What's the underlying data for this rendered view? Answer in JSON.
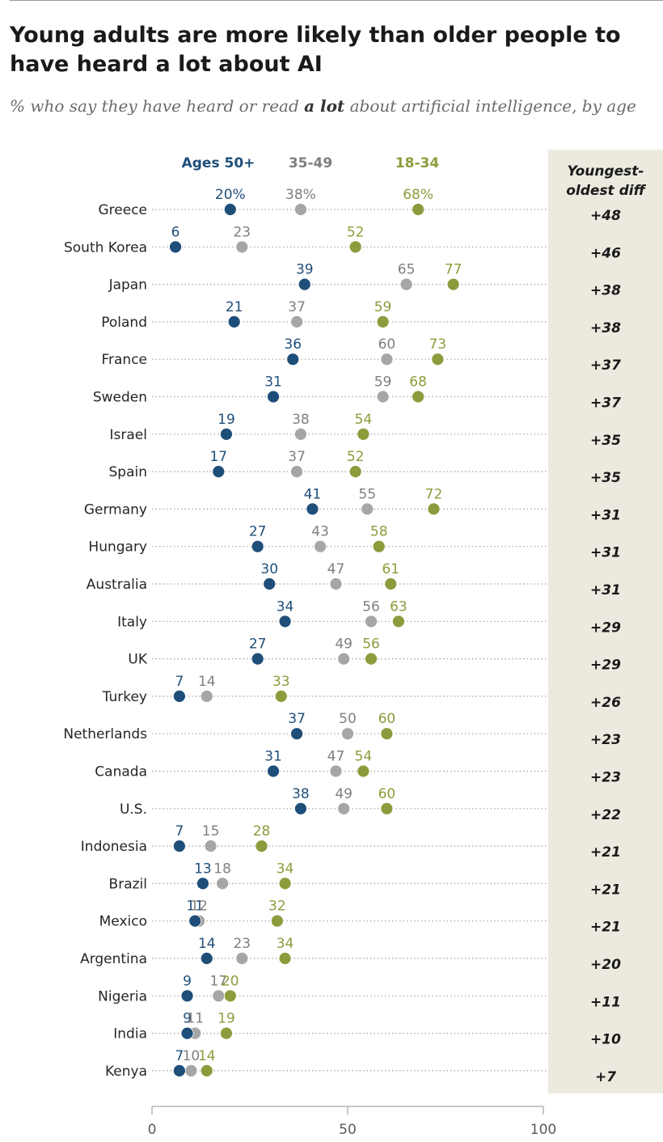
{
  "title": "Young adults are more likely than older people to have heard a lot about AI",
  "subtitle": {
    "before": "% who say they have heard or read ",
    "emphasis": "a lot",
    "after": " about artificial intelligence, by age"
  },
  "colors": {
    "ages_50_plus": "#1f4e79",
    "ages_35_49": "#a6a6a6",
    "ages_18_34": "#8c9c3c",
    "diff_panel": "#ece9df",
    "label_gray": "#7f7f7f"
  },
  "chart_data": {
    "type": "scatter",
    "subtype": "dot-plot",
    "xlim": [
      0,
      100
    ],
    "x_ticks": [
      "0",
      "50",
      "100"
    ],
    "legend": [
      {
        "key": "ages_50_plus",
        "label": "Ages 50+"
      },
      {
        "key": "ages_35_49",
        "label": "35-49"
      },
      {
        "key": "ages_18_34",
        "label": "18-34"
      }
    ],
    "diff_header": [
      "Youngest-",
      "oldest diff"
    ],
    "countries": [
      {
        "name": "Greece",
        "ages_50_plus": 20,
        "ages_35_49": 38,
        "ages_18_34": 68,
        "diff": "+48",
        "pct": true
      },
      {
        "name": "South Korea",
        "ages_50_plus": 6,
        "ages_35_49": 23,
        "ages_18_34": 52,
        "diff": "+46"
      },
      {
        "name": "Japan",
        "ages_50_plus": 39,
        "ages_35_49": 65,
        "ages_18_34": 77,
        "diff": "+38"
      },
      {
        "name": "Poland",
        "ages_50_plus": 21,
        "ages_35_49": 37,
        "ages_18_34": 59,
        "diff": "+38"
      },
      {
        "name": "France",
        "ages_50_plus": 36,
        "ages_35_49": 60,
        "ages_18_34": 73,
        "diff": "+37"
      },
      {
        "name": "Sweden",
        "ages_50_plus": 31,
        "ages_35_49": 59,
        "ages_18_34": 68,
        "diff": "+37"
      },
      {
        "name": "Israel",
        "ages_50_plus": 19,
        "ages_35_49": 38,
        "ages_18_34": 54,
        "diff": "+35"
      },
      {
        "name": "Spain",
        "ages_50_plus": 17,
        "ages_35_49": 37,
        "ages_18_34": 52,
        "diff": "+35"
      },
      {
        "name": "Germany",
        "ages_50_plus": 41,
        "ages_35_49": 55,
        "ages_18_34": 72,
        "diff": "+31"
      },
      {
        "name": "Hungary",
        "ages_50_plus": 27,
        "ages_35_49": 43,
        "ages_18_34": 58,
        "diff": "+31"
      },
      {
        "name": "Australia",
        "ages_50_plus": 30,
        "ages_35_49": 47,
        "ages_18_34": 61,
        "diff": "+31"
      },
      {
        "name": "Italy",
        "ages_50_plus": 34,
        "ages_35_49": 56,
        "ages_18_34": 63,
        "diff": "+29"
      },
      {
        "name": "UK",
        "ages_50_plus": 27,
        "ages_35_49": 49,
        "ages_18_34": 56,
        "diff": "+29"
      },
      {
        "name": "Turkey",
        "ages_50_plus": 7,
        "ages_35_49": 14,
        "ages_18_34": 33,
        "diff": "+26"
      },
      {
        "name": "Netherlands",
        "ages_50_plus": 37,
        "ages_35_49": 50,
        "ages_18_34": 60,
        "diff": "+23"
      },
      {
        "name": "Canada",
        "ages_50_plus": 31,
        "ages_35_49": 47,
        "ages_18_34": 54,
        "diff": "+23"
      },
      {
        "name": "U.S.",
        "ages_50_plus": 38,
        "ages_35_49": 49,
        "ages_18_34": 60,
        "diff": "+22"
      },
      {
        "name": "Indonesia",
        "ages_50_plus": 7,
        "ages_35_49": 15,
        "ages_18_34": 28,
        "diff": "+21"
      },
      {
        "name": "Brazil",
        "ages_50_plus": 13,
        "ages_35_49": 18,
        "ages_18_34": 34,
        "diff": "+21"
      },
      {
        "name": "Mexico",
        "ages_50_plus": 11,
        "ages_35_49": 12,
        "ages_18_34": 32,
        "diff": "+21"
      },
      {
        "name": "Argentina",
        "ages_50_plus": 14,
        "ages_35_49": 23,
        "ages_18_34": 34,
        "diff": "+20"
      },
      {
        "name": "Nigeria",
        "ages_50_plus": 9,
        "ages_35_49": 17,
        "ages_18_34": 20,
        "diff": "+11"
      },
      {
        "name": "India",
        "ages_50_plus": 9,
        "ages_35_49": 11,
        "ages_18_34": 19,
        "diff": "+10"
      },
      {
        "name": "Kenya",
        "ages_50_plus": 7,
        "ages_35_49": 10,
        "ages_18_34": 14,
        "diff": "+7"
      }
    ]
  }
}
